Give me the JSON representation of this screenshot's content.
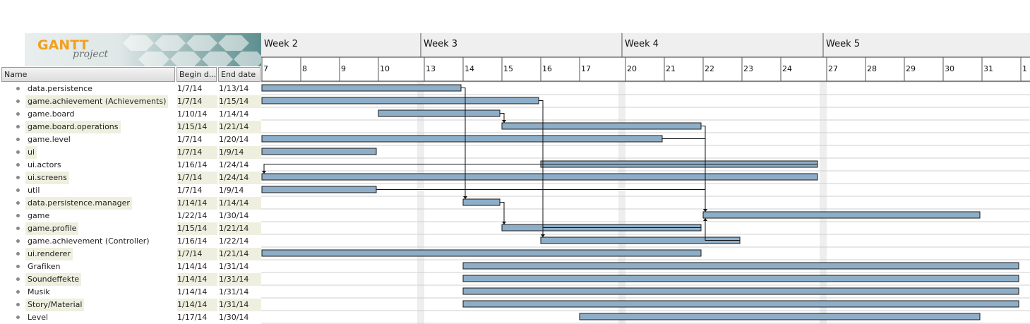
{
  "logo": {
    "text": "GANTT",
    "sub": "project"
  },
  "table": {
    "headers": {
      "name": "Name",
      "begin": "Begin d...",
      "end": "End date"
    }
  },
  "timeline": {
    "weeks": [
      "Week 2",
      "Week 3",
      "Week 4",
      "Week 5"
    ],
    "days": [
      "7",
      "8",
      "9",
      "10",
      "13",
      "14",
      "15",
      "16",
      "17",
      "20",
      "21",
      "22",
      "23",
      "24",
      "27",
      "28",
      "29",
      "30",
      "31",
      "1"
    ]
  },
  "chart_data": {
    "type": "gantt",
    "tasks": [
      {
        "name": "data.persistence",
        "begin": "1/7/14",
        "end": "1/13/14"
      },
      {
        "name": "game.achievement (Achievements)",
        "begin": "1/7/14",
        "end": "1/15/14"
      },
      {
        "name": "game.board",
        "begin": "1/10/14",
        "end": "1/14/14"
      },
      {
        "name": "game.board.operations",
        "begin": "1/15/14",
        "end": "1/21/14"
      },
      {
        "name": "game.level",
        "begin": "1/7/14",
        "end": "1/20/14"
      },
      {
        "name": "ui",
        "begin": "1/7/14",
        "end": "1/9/14"
      },
      {
        "name": "ui.actors",
        "begin": "1/16/14",
        "end": "1/24/14"
      },
      {
        "name": "ui.screens",
        "begin": "1/7/14",
        "end": "1/24/14"
      },
      {
        "name": "util",
        "begin": "1/7/14",
        "end": "1/9/14"
      },
      {
        "name": "data.persistence.manager",
        "begin": "1/14/14",
        "end": "1/14/14"
      },
      {
        "name": "game",
        "begin": "1/22/14",
        "end": "1/30/14"
      },
      {
        "name": "game.profile",
        "begin": "1/15/14",
        "end": "1/21/14"
      },
      {
        "name": "game.achievement (Controller)",
        "begin": "1/16/14",
        "end": "1/22/14"
      },
      {
        "name": "ui.renderer",
        "begin": "1/7/14",
        "end": "1/21/14"
      },
      {
        "name": "Grafiken",
        "begin": "1/14/14",
        "end": "1/31/14"
      },
      {
        "name": "Soundeffekte",
        "begin": "1/14/14",
        "end": "1/31/14"
      },
      {
        "name": "Musik",
        "begin": "1/14/14",
        "end": "1/31/14"
      },
      {
        "name": "Story/Material",
        "begin": "1/14/14",
        "end": "1/31/14"
      },
      {
        "name": "Level",
        "begin": "1/17/14",
        "end": "1/30/14"
      }
    ],
    "dependencies": [
      {
        "from": "data.persistence",
        "to": "data.persistence.manager"
      },
      {
        "from": "game.achievement (Achievements)",
        "to": "game.achievement (Controller)"
      },
      {
        "from": "game.board",
        "to": "game.board.operations"
      },
      {
        "from": "game.board.operations",
        "to": "game"
      },
      {
        "from": "game.level",
        "to": "game"
      },
      {
        "from": "ui.actors",
        "to": "ui.screens"
      },
      {
        "from": "util",
        "to": "game"
      },
      {
        "from": "data.persistence.manager",
        "to": "game.profile"
      },
      {
        "from": "game.profile",
        "to": "game.achievement (Controller)"
      },
      {
        "from": "game.achievement (Controller)",
        "to": "game"
      },
      {
        "from": "ui.renderer",
        "to": "ui.renderer"
      }
    ],
    "colors": {
      "bar": "#8eaec8",
      "bar_border": "#1a1a1a",
      "weekend": "#eeeeee",
      "header_bg": "#efefef"
    }
  }
}
